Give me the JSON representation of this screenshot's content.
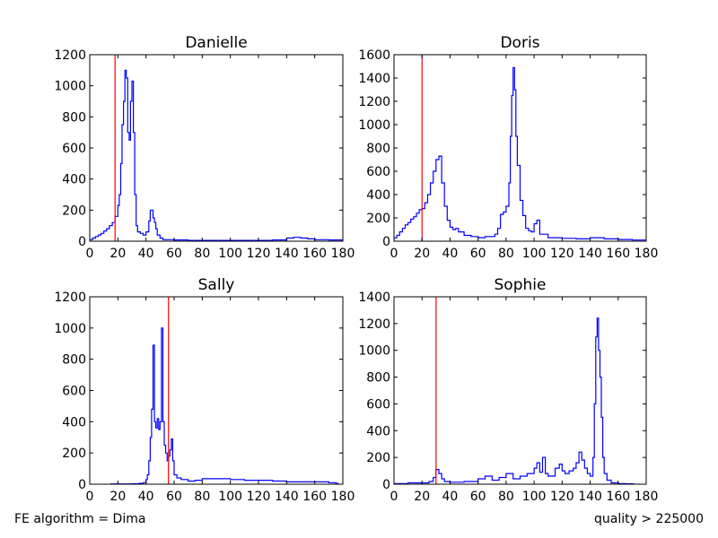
{
  "footer": {
    "left": "FE algorithm = Dima",
    "right": "quality > 225000"
  },
  "colors": {
    "histogram": "#0000ff",
    "threshold_line": "#ff0000",
    "axes": "#000000"
  },
  "chart_data": [
    {
      "type": "line",
      "style": "step histogram",
      "title": "Danielle",
      "xlim": [
        0,
        180
      ],
      "ylim": [
        0,
        1200
      ],
      "xticks": [
        0,
        20,
        40,
        60,
        80,
        100,
        120,
        140,
        160,
        180
      ],
      "yticks": [
        0,
        200,
        400,
        600,
        800,
        1000,
        1200
      ],
      "threshold_x": 18,
      "series": [
        {
          "x": [
            0,
            2,
            4,
            6,
            8,
            10,
            12,
            14,
            16,
            18,
            20,
            21,
            22,
            23,
            24,
            25,
            26,
            27,
            28,
            29,
            30,
            31,
            32,
            33,
            34,
            36,
            38,
            40,
            42,
            43,
            44,
            45,
            46,
            47,
            48,
            50,
            52,
            56,
            60,
            70,
            80,
            90,
            100,
            110,
            120,
            130,
            140,
            145,
            150,
            155,
            160,
            170,
            180
          ],
          "y": [
            10,
            20,
            30,
            40,
            50,
            65,
            80,
            100,
            120,
            160,
            230,
            300,
            500,
            750,
            900,
            1100,
            1050,
            700,
            650,
            900,
            1030,
            700,
            300,
            100,
            60,
            50,
            40,
            60,
            130,
            200,
            200,
            150,
            120,
            80,
            40,
            20,
            10,
            10,
            8,
            5,
            5,
            5,
            5,
            5,
            5,
            8,
            20,
            25,
            20,
            15,
            10,
            8,
            5
          ]
        }
      ]
    },
    {
      "type": "line",
      "style": "step histogram",
      "title": "Doris",
      "xlim": [
        0,
        180
      ],
      "ylim": [
        0,
        1600
      ],
      "xticks": [
        0,
        20,
        40,
        60,
        80,
        100,
        120,
        140,
        160,
        180
      ],
      "yticks": [
        0,
        200,
        400,
        600,
        800,
        1000,
        1200,
        1400,
        1600
      ],
      "threshold_x": 20,
      "series": [
        {
          "x": [
            0,
            2,
            4,
            6,
            8,
            10,
            12,
            14,
            16,
            18,
            20,
            22,
            24,
            26,
            28,
            30,
            32,
            34,
            36,
            38,
            40,
            42,
            44,
            46,
            50,
            55,
            60,
            65,
            70,
            72,
            74,
            76,
            78,
            80,
            82,
            83,
            84,
            85,
            86,
            87,
            88,
            90,
            92,
            94,
            96,
            98,
            100,
            102,
            104,
            110,
            120,
            130,
            140,
            150,
            160,
            170,
            180
          ],
          "y": [
            30,
            50,
            80,
            110,
            140,
            160,
            190,
            210,
            240,
            270,
            280,
            330,
            400,
            500,
            600,
            700,
            730,
            500,
            300,
            180,
            120,
            100,
            110,
            80,
            50,
            40,
            30,
            40,
            40,
            60,
            110,
            230,
            250,
            300,
            500,
            900,
            1250,
            1490,
            1300,
            900,
            650,
            350,
            220,
            110,
            90,
            80,
            150,
            180,
            60,
            30,
            25,
            20,
            30,
            20,
            15,
            10,
            5
          ]
        }
      ]
    },
    {
      "type": "line",
      "style": "step histogram",
      "title": "Sally",
      "xlim": [
        0,
        180
      ],
      "ylim": [
        0,
        1200
      ],
      "xticks": [
        0,
        20,
        40,
        60,
        80,
        100,
        120,
        140,
        160,
        180
      ],
      "yticks": [
        0,
        200,
        400,
        600,
        800,
        1000,
        1200
      ],
      "threshold_x": 56,
      "series": [
        {
          "x": [
            15,
            20,
            25,
            30,
            35,
            38,
            40,
            41,
            42,
            43,
            44,
            45,
            46,
            47,
            48,
            49,
            50,
            51,
            52,
            53,
            54,
            55,
            56,
            57,
            58,
            59,
            60,
            62,
            65,
            70,
            75,
            80,
            90,
            100,
            110,
            120,
            130,
            140,
            150,
            160,
            170,
            175
          ],
          "y": [
            2,
            2,
            2,
            3,
            5,
            10,
            30,
            60,
            150,
            300,
            480,
            890,
            400,
            360,
            420,
            350,
            400,
            1000,
            400,
            250,
            200,
            150,
            180,
            220,
            290,
            150,
            60,
            40,
            30,
            20,
            25,
            35,
            35,
            30,
            25,
            25,
            20,
            15,
            15,
            15,
            10,
            5
          ]
        }
      ]
    },
    {
      "type": "line",
      "style": "step histogram",
      "title": "Sophie",
      "xlim": [
        0,
        180
      ],
      "ylim": [
        0,
        1400
      ],
      "xticks": [
        0,
        20,
        40,
        60,
        80,
        100,
        120,
        140,
        160,
        180
      ],
      "yticks": [
        0,
        200,
        400,
        600,
        800,
        1000,
        1200,
        1400
      ],
      "threshold_x": 30,
      "series": [
        {
          "x": [
            0,
            10,
            20,
            25,
            28,
            30,
            32,
            34,
            36,
            40,
            50,
            60,
            65,
            70,
            75,
            80,
            85,
            90,
            95,
            100,
            102,
            104,
            106,
            108,
            110,
            115,
            118,
            120,
            122,
            125,
            128,
            130,
            132,
            134,
            136,
            138,
            140,
            142,
            143,
            144,
            145,
            146,
            147,
            148,
            149,
            150,
            152,
            155,
            160,
            165,
            170
          ],
          "y": [
            5,
            10,
            10,
            20,
            50,
            110,
            80,
            40,
            20,
            15,
            20,
            40,
            60,
            30,
            50,
            80,
            40,
            60,
            80,
            120,
            160,
            90,
            200,
            80,
            60,
            120,
            150,
            100,
            80,
            100,
            120,
            160,
            240,
            180,
            120,
            80,
            60,
            200,
            600,
            1100,
            1240,
            1000,
            800,
            500,
            200,
            80,
            30,
            10,
            5,
            3,
            2
          ]
        }
      ]
    }
  ]
}
